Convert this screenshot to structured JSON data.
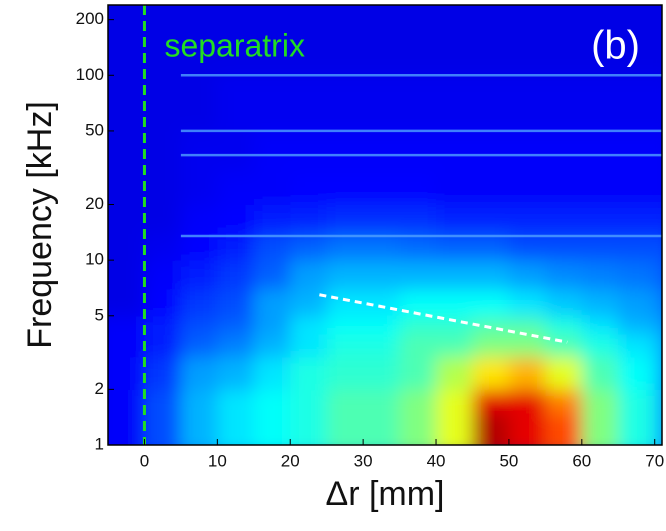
{
  "chart_data": {
    "type": "heatmap",
    "xlabel": "Δr [mm]",
    "ylabel": "Frequency [kHz]",
    "panel_label": "(b)",
    "xlim": [
      -5,
      71
    ],
    "xticks": [
      0,
      10,
      20,
      30,
      40,
      50,
      60,
      70
    ],
    "ylim": [
      1,
      240
    ],
    "yticks": [
      1,
      2,
      5,
      10,
      20,
      50,
      100,
      200
    ],
    "log_y": true,
    "colormap": "jet",
    "x_edges": [
      -5,
      0,
      5,
      10,
      15,
      20,
      25,
      30,
      35,
      40,
      45,
      50,
      55,
      60,
      65,
      70,
      71
    ],
    "y_edges": [
      1,
      1.5,
      2,
      3,
      4,
      5,
      7,
      10,
      14,
      20,
      30,
      50,
      100,
      240
    ],
    "values": [
      [
        0.12,
        0.2,
        0.3,
        0.35,
        0.38,
        0.4,
        0.45,
        0.45,
        0.5,
        0.6,
        0.95,
        0.9,
        0.8,
        0.5,
        0.4,
        0.3
      ],
      [
        0.12,
        0.2,
        0.3,
        0.35,
        0.38,
        0.4,
        0.45,
        0.45,
        0.5,
        0.6,
        0.9,
        0.9,
        0.75,
        0.5,
        0.4,
        0.3
      ],
      [
        0.12,
        0.18,
        0.28,
        0.3,
        0.35,
        0.4,
        0.42,
        0.42,
        0.45,
        0.55,
        0.65,
        0.7,
        0.6,
        0.45,
        0.38,
        0.3
      ],
      [
        0.12,
        0.15,
        0.22,
        0.25,
        0.3,
        0.35,
        0.4,
        0.4,
        0.45,
        0.45,
        0.5,
        0.5,
        0.45,
        0.4,
        0.35,
        0.3
      ],
      [
        0.12,
        0.15,
        0.2,
        0.22,
        0.28,
        0.35,
        0.38,
        0.38,
        0.42,
        0.42,
        0.45,
        0.45,
        0.4,
        0.35,
        0.3,
        0.28
      ],
      [
        0.1,
        0.13,
        0.18,
        0.2,
        0.28,
        0.3,
        0.35,
        0.35,
        0.38,
        0.38,
        0.38,
        0.35,
        0.32,
        0.3,
        0.28,
        0.25
      ],
      [
        0.1,
        0.12,
        0.15,
        0.18,
        0.22,
        0.28,
        0.3,
        0.3,
        0.3,
        0.3,
        0.3,
        0.28,
        0.26,
        0.25,
        0.24,
        0.22
      ],
      [
        0.1,
        0.11,
        0.13,
        0.15,
        0.2,
        0.22,
        0.24,
        0.24,
        0.23,
        0.22,
        0.22,
        0.2,
        0.2,
        0.2,
        0.2,
        0.2
      ],
      [
        0.1,
        0.1,
        0.12,
        0.13,
        0.15,
        0.16,
        0.17,
        0.17,
        0.17,
        0.16,
        0.16,
        0.16,
        0.16,
        0.16,
        0.16,
        0.16
      ],
      [
        0.1,
        0.1,
        0.11,
        0.12,
        0.12,
        0.13,
        0.13,
        0.13,
        0.13,
        0.12,
        0.12,
        0.12,
        0.12,
        0.12,
        0.12,
        0.12
      ],
      [
        0.1,
        0.1,
        0.11,
        0.11,
        0.12,
        0.12,
        0.12,
        0.12,
        0.12,
        0.12,
        0.12,
        0.12,
        0.12,
        0.12,
        0.12,
        0.12
      ],
      [
        0.1,
        0.1,
        0.1,
        0.11,
        0.11,
        0.11,
        0.11,
        0.11,
        0.11,
        0.11,
        0.11,
        0.11,
        0.11,
        0.11,
        0.11,
        0.11
      ],
      [
        0.1,
        0.1,
        0.1,
        0.1,
        0.1,
        0.1,
        0.1,
        0.1,
        0.1,
        0.1,
        0.1,
        0.1,
        0.1,
        0.1,
        0.1,
        0.1
      ]
    ],
    "mode_lines": [
      100,
      50,
      37,
      13.5
    ],
    "separatrix": {
      "text": "separatrix",
      "x": 0,
      "color": "#22dd22"
    },
    "trend_line": {
      "x": [
        24,
        58
      ],
      "y": [
        6.5,
        3.6
      ],
      "color": "#ffffff"
    }
  }
}
